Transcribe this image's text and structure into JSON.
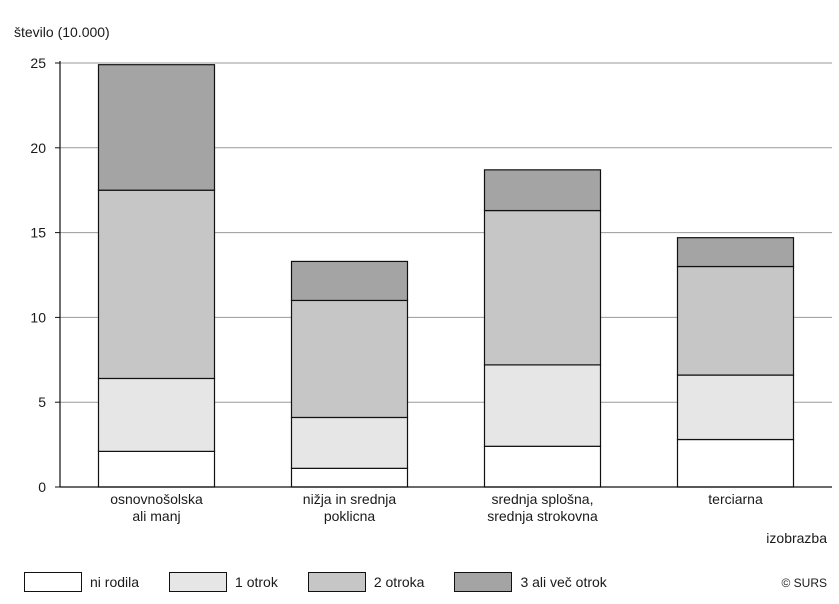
{
  "chart_data": {
    "type": "bar",
    "stacked": true,
    "ylabel": "število (10.000)",
    "xlabel": "izobrazba",
    "ylim": [
      0,
      25
    ],
    "yticks": [
      0,
      5,
      10,
      15,
      20,
      25
    ],
    "grid": true,
    "legend_position": "bottom",
    "categories": [
      [
        "osnovnošolska",
        "ali manj"
      ],
      [
        "nižja in srednja",
        "poklicna"
      ],
      [
        "srednja splošna,",
        "srednja strokovna"
      ],
      [
        "terciarna"
      ]
    ],
    "series": [
      {
        "name": "ni rodila",
        "color": "#ffffff",
        "values": [
          2.1,
          1.1,
          2.4,
          2.8
        ]
      },
      {
        "name": "1 otrok",
        "color": "#e6e6e6",
        "values": [
          4.3,
          3.0,
          4.8,
          3.8
        ]
      },
      {
        "name": "2 otroka",
        "color": "#c6c6c6",
        "values": [
          11.1,
          6.9,
          9.1,
          6.4
        ]
      },
      {
        "name": "3 ali več otrok",
        "color": "#a4a4a4",
        "values": [
          7.4,
          2.3,
          2.4,
          1.7
        ]
      }
    ],
    "source": "© SURS"
  }
}
